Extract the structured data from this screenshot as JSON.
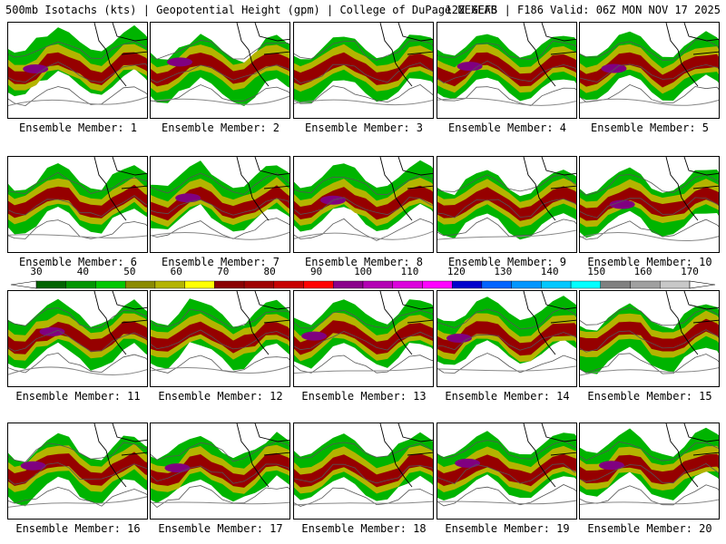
{
  "header": {
    "left": "500mb Isotachs (kts) | Geopotential Height (gpm) | College of DuPage NEXLAB",
    "right": "12Z GEFS | F186 Valid: 06Z MON NOV 17 2025"
  },
  "panels": [
    {
      "member": 1,
      "label": "Ensemble Member: 1"
    },
    {
      "member": 2,
      "label": "Ensemble Member: 2"
    },
    {
      "member": 3,
      "label": "Ensemble Member: 3"
    },
    {
      "member": 4,
      "label": "Ensemble Member: 4"
    },
    {
      "member": 5,
      "label": "Ensemble Member: 5"
    },
    {
      "member": 6,
      "label": "Ensemble Member: 6"
    },
    {
      "member": 7,
      "label": "Ensemble Member: 7"
    },
    {
      "member": 8,
      "label": "Ensemble Member: 8"
    },
    {
      "member": 9,
      "label": "Ensemble Member: 9"
    },
    {
      "member": 10,
      "label": "Ensemble Member: 10"
    },
    {
      "member": 11,
      "label": "Ensemble Member: 11"
    },
    {
      "member": 12,
      "label": "Ensemble Member: 12"
    },
    {
      "member": 13,
      "label": "Ensemble Member: 13"
    },
    {
      "member": 14,
      "label": "Ensemble Member: 14"
    },
    {
      "member": 15,
      "label": "Ensemble Member: 15"
    },
    {
      "member": 16,
      "label": "Ensemble Member: 16"
    },
    {
      "member": 17,
      "label": "Ensemble Member: 17"
    },
    {
      "member": 18,
      "label": "Ensemble Member: 18"
    },
    {
      "member": 19,
      "label": "Ensemble Member: 19"
    },
    {
      "member": 20,
      "label": "Ensemble Member: 20"
    }
  ],
  "colorbar": {
    "tick_labels": [
      "30",
      "40",
      "50",
      "60",
      "70",
      "80",
      "90",
      "100",
      "110",
      "120",
      "130",
      "140",
      "150",
      "160",
      "170"
    ],
    "colors": [
      "#006400",
      "#009600",
      "#00c800",
      "#8b8b00",
      "#b4b400",
      "#ffff00",
      "#8b0000",
      "#a00000",
      "#c80000",
      "#ff0000",
      "#8b008b",
      "#b400b4",
      "#dc00dc",
      "#ff00ff",
      "#0000cd",
      "#0064ff",
      "#0096ff",
      "#00c8ff",
      "#00ffff",
      "#808080",
      "#a0a0a0",
      "#c8c8c8"
    ]
  }
}
